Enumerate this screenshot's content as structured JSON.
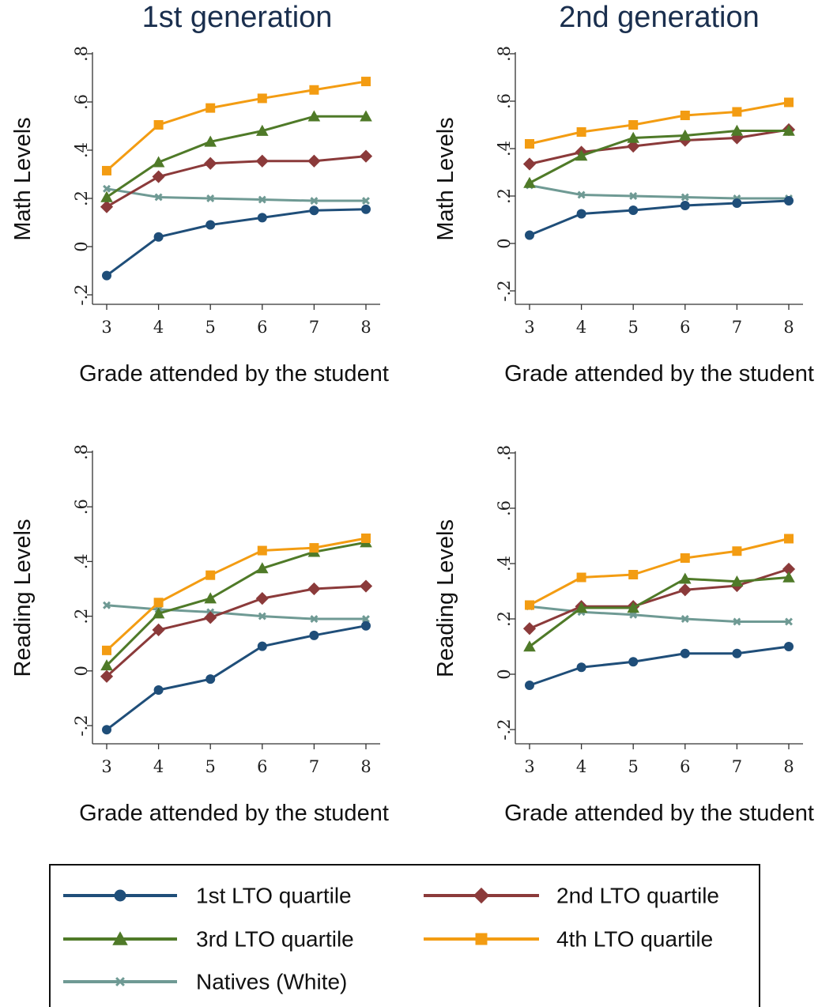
{
  "column_titles": [
    "1st generation",
    "2nd generation"
  ],
  "colors": {
    "q1": "#1f4e79",
    "q2": "#8b3a3a",
    "q3": "#4f7a28",
    "q4": "#f39c12",
    "natives": "#6f9a94"
  },
  "legend": [
    {
      "name": "1st LTO quartile",
      "color": "#1f4e79",
      "marker": "circle"
    },
    {
      "name": "2nd LTO quartile",
      "color": "#8b3a3a",
      "marker": "diamond"
    },
    {
      "name": "3rd LTO quartile",
      "color": "#4f7a28",
      "marker": "triangle"
    },
    {
      "name": "4th LTO quartile",
      "color": "#f39c12",
      "marker": "square"
    },
    {
      "name": "Natives (White)",
      "color": "#6f9a94",
      "marker": "x"
    }
  ],
  "chart_data": [
    {
      "type": "line",
      "title": "1st generation",
      "xlabel": "Grade attended by the student",
      "ylabel": "Math Levels",
      "x": [
        3,
        4,
        5,
        6,
        7,
        8
      ],
      "xticks": [
        "3",
        "4",
        "5",
        "6",
        "7",
        "8"
      ],
      "yticks": [
        "-.2",
        "0",
        ".2",
        ".4",
        ".6",
        ".8"
      ],
      "ylim": [
        -0.2,
        0.8
      ],
      "series": [
        {
          "name": "1st LTO quartile",
          "values": [
            -0.12,
            0.04,
            0.09,
            0.12,
            0.15,
            0.155
          ]
        },
        {
          "name": "2nd LTO quartile",
          "values": [
            0.165,
            0.29,
            0.345,
            0.355,
            0.355,
            0.375
          ]
        },
        {
          "name": "3rd LTO quartile",
          "values": [
            0.205,
            0.35,
            0.435,
            0.48,
            0.54,
            0.54
          ]
        },
        {
          "name": "4th LTO quartile",
          "values": [
            0.315,
            0.505,
            0.575,
            0.615,
            0.65,
            0.685
          ]
        },
        {
          "name": "Natives (White)",
          "values": [
            0.24,
            0.205,
            0.2,
            0.195,
            0.19,
            0.19
          ]
        }
      ]
    },
    {
      "type": "line",
      "title": "2nd generation",
      "xlabel": "Grade attended by the student",
      "ylabel": "Math Levels",
      "x": [
        3,
        4,
        5,
        6,
        7,
        8
      ],
      "xticks": [
        "3",
        "4",
        "5",
        "6",
        "7",
        "8"
      ],
      "yticks": [
        "-.2",
        "0",
        ".2",
        ".4",
        ".6",
        ".8"
      ],
      "ylim": [
        -0.2,
        0.8
      ],
      "series": [
        {
          "name": "1st LTO quartile",
          "values": [
            0.035,
            0.125,
            0.14,
            0.16,
            0.17,
            0.18
          ]
        },
        {
          "name": "2nd LTO quartile",
          "values": [
            0.335,
            0.385,
            0.41,
            0.435,
            0.445,
            0.48
          ]
        },
        {
          "name": "3rd LTO quartile",
          "values": [
            0.255,
            0.37,
            0.445,
            0.455,
            0.475,
            0.475
          ]
        },
        {
          "name": "4th LTO quartile",
          "values": [
            0.42,
            0.47,
            0.5,
            0.54,
            0.555,
            0.595
          ]
        },
        {
          "name": "Natives (White)",
          "values": [
            0.245,
            0.205,
            0.2,
            0.195,
            0.19,
            0.19
          ]
        }
      ]
    },
    {
      "type": "line",
      "title": "1st generation",
      "xlabel": "Grade attended by the student",
      "ylabel": "Reading Levels",
      "x": [
        3,
        4,
        5,
        6,
        7,
        8
      ],
      "xticks": [
        "3",
        "4",
        "5",
        "6",
        "7",
        "8"
      ],
      "yticks": [
        "-.2",
        "0",
        ".2",
        ".4",
        ".6",
        ".8"
      ],
      "ylim": [
        -0.2,
        0.8
      ],
      "series": [
        {
          "name": "1st LTO quartile",
          "values": [
            -0.215,
            -0.07,
            -0.03,
            0.09,
            0.13,
            0.165
          ]
        },
        {
          "name": "2nd LTO quartile",
          "values": [
            -0.02,
            0.15,
            0.195,
            0.265,
            0.3,
            0.31
          ]
        },
        {
          "name": "3rd LTO quartile",
          "values": [
            0.02,
            0.21,
            0.265,
            0.375,
            0.435,
            0.47
          ]
        },
        {
          "name": "4th LTO quartile",
          "values": [
            0.075,
            0.25,
            0.35,
            0.44,
            0.45,
            0.485
          ]
        },
        {
          "name": "Natives (White)",
          "values": [
            0.24,
            0.225,
            0.215,
            0.2,
            0.19,
            0.19
          ]
        }
      ]
    },
    {
      "type": "line",
      "title": "2nd generation",
      "xlabel": "Grade attended by the student",
      "ylabel": "Reading Levels",
      "x": [
        3,
        4,
        5,
        6,
        7,
        8
      ],
      "xticks": [
        "3",
        "4",
        "5",
        "6",
        "7",
        "8"
      ],
      "yticks": [
        "-.2",
        "0",
        ".2",
        ".4",
        ".6",
        ".8"
      ],
      "ylim": [
        -0.2,
        0.8
      ],
      "series": [
        {
          "name": "1st LTO quartile",
          "values": [
            -0.04,
            0.025,
            0.045,
            0.075,
            0.075,
            0.1
          ]
        },
        {
          "name": "2nd LTO quartile",
          "values": [
            0.165,
            0.245,
            0.245,
            0.305,
            0.32,
            0.38
          ]
        },
        {
          "name": "3rd LTO quartile",
          "values": [
            0.1,
            0.24,
            0.24,
            0.345,
            0.335,
            0.35
          ]
        },
        {
          "name": "4th LTO quartile",
          "values": [
            0.25,
            0.35,
            0.36,
            0.42,
            0.445,
            0.49
          ]
        },
        {
          "name": "Natives (White)",
          "values": [
            0.245,
            0.225,
            0.215,
            0.2,
            0.19,
            0.19
          ]
        }
      ]
    }
  ]
}
